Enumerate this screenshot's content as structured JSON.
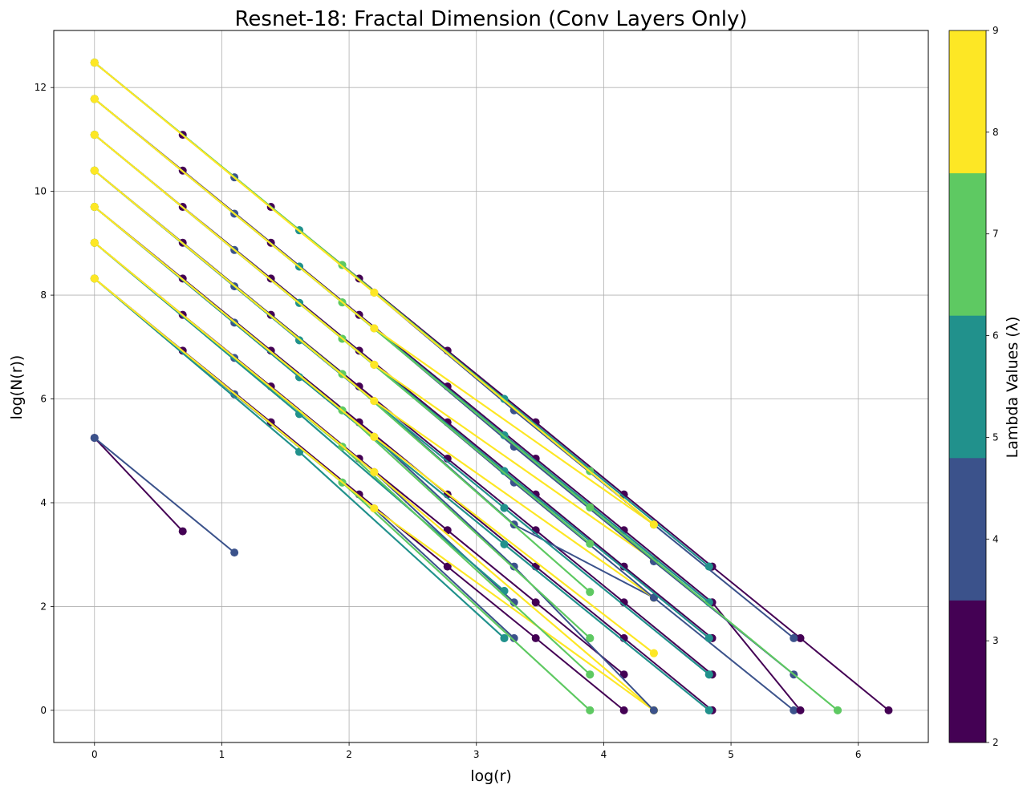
{
  "chart_data": {
    "type": "line",
    "title": "Resnet-18: Fractal Dimension (Conv Layers Only)",
    "xlabel": "log(r)",
    "ylabel": "log(N(r))",
    "xlim": [
      -0.32,
      6.55
    ],
    "ylim": [
      -0.62,
      13.1
    ],
    "xticks": [
      0,
      1,
      2,
      3,
      4,
      5,
      6
    ],
    "yticks": [
      0,
      2,
      4,
      6,
      8,
      10,
      12
    ],
    "grid": true,
    "colorbar": {
      "label": "Lambda Values (λ)",
      "ticks": [
        2,
        3,
        4,
        5,
        6,
        7,
        8,
        9
      ],
      "range": [
        2,
        9
      ],
      "bands": [
        {
          "color": "#440154"
        },
        {
          "color": "#3b528b"
        },
        {
          "color": "#21918c"
        },
        {
          "color": "#5ec962"
        },
        {
          "color": "#fde725"
        }
      ]
    },
    "series": [
      {
        "lambda": 2,
        "color": "#440154",
        "x": [
          0,
          0.693
        ],
        "y": [
          5.25,
          3.45
        ]
      },
      {
        "lambda": 3,
        "color": "#3b528b",
        "x": [
          0,
          1.099
        ],
        "y": [
          5.25,
          3.04
        ]
      },
      {
        "lambda": 2,
        "color": "#440154",
        "x": [
          0,
          0.693,
          1.386,
          2.079,
          2.773,
          3.466,
          4.159
        ],
        "y": [
          8.32,
          6.93,
          5.55,
          4.16,
          2.77,
          1.39,
          0
        ]
      },
      {
        "lambda": 3,
        "color": "#3b528b",
        "x": [
          0,
          1.099,
          2.197,
          3.296
        ],
        "y": [
          8.32,
          6.09,
          3.89,
          1.39
        ]
      },
      {
        "lambda": 4,
        "color": "#21918c",
        "x": [
          0,
          1.609,
          3.219
        ],
        "y": [
          8.32,
          4.98,
          1.39
        ]
      },
      {
        "lambda": 5,
        "color": "#21918c",
        "x": [
          0,
          1.609,
          3.219
        ],
        "y": [
          8.32,
          4.98,
          1.39
        ]
      },
      {
        "lambda": 6,
        "color": "#5ec962",
        "x": [
          0,
          1.946,
          3.892
        ],
        "y": [
          8.32,
          4.39,
          0
        ]
      },
      {
        "lambda": 7,
        "color": "#5ec962",
        "x": [
          0,
          1.946,
          3.892
        ],
        "y": [
          8.32,
          4.39,
          0
        ]
      },
      {
        "lambda": 8,
        "color": "#fde725",
        "x": [
          0,
          2.197,
          4.394
        ],
        "y": [
          8.32,
          3.89,
          0
        ]
      },
      {
        "lambda": 9,
        "color": "#fde725",
        "x": [
          0,
          2.197,
          4.394
        ],
        "y": [
          8.32,
          3.89,
          0
        ]
      },
      {
        "lambda": 2,
        "color": "#440154",
        "x": [
          0,
          0.693,
          1.386,
          2.079,
          2.773,
          3.466,
          4.159
        ],
        "y": [
          9.01,
          7.62,
          6.24,
          4.85,
          3.47,
          2.08,
          0.69
        ]
      },
      {
        "lambda": 3,
        "color": "#3b528b",
        "x": [
          0,
          1.099,
          2.197,
          3.296
        ],
        "y": [
          9.01,
          6.79,
          4.59,
          2.08
        ]
      },
      {
        "lambda": 4,
        "color": "#21918c",
        "x": [
          0,
          1.609,
          3.219
        ],
        "y": [
          9.01,
          5.71,
          2.3
        ]
      },
      {
        "lambda": 5,
        "color": "#21918c",
        "x": [
          0,
          1.609,
          3.219
        ],
        "y": [
          9.01,
          5.71,
          2.3
        ]
      },
      {
        "lambda": 6,
        "color": "#5ec962",
        "x": [
          0,
          1.946,
          3.892
        ],
        "y": [
          9.01,
          5.08,
          0.69
        ]
      },
      {
        "lambda": 7,
        "color": "#5ec962",
        "x": [
          0,
          1.946,
          3.892
        ],
        "y": [
          9.01,
          5.08,
          0.69
        ]
      },
      {
        "lambda": 8,
        "color": "#fde725",
        "x": [
          0,
          2.197,
          4.394
        ],
        "y": [
          9.01,
          4.59,
          0
        ]
      },
      {
        "lambda": 9,
        "color": "#fde725",
        "x": [
          0,
          2.197,
          4.394
        ],
        "y": [
          9.01,
          4.59,
          0
        ]
      },
      {
        "lambda": 2,
        "color": "#440154",
        "x": [
          0,
          0.693,
          1.386,
          2.079,
          2.773,
          3.466,
          4.159,
          4.852
        ],
        "y": [
          9.7,
          8.32,
          6.93,
          5.55,
          4.16,
          2.77,
          1.39,
          0
        ]
      },
      {
        "lambda": 3,
        "color": "#3b528b",
        "x": [
          0,
          1.099,
          2.197,
          3.296,
          4.394
        ],
        "y": [
          9.7,
          7.47,
          5.27,
          2.77,
          0
        ]
      },
      {
        "lambda": 4,
        "color": "#21918c",
        "x": [
          0,
          1.609,
          3.219,
          4.828
        ],
        "y": [
          9.7,
          6.42,
          3.2,
          0
        ]
      },
      {
        "lambda": 5,
        "color": "#21918c",
        "x": [
          0,
          1.609,
          3.219,
          4.828
        ],
        "y": [
          9.7,
          6.42,
          3.2,
          0
        ]
      },
      {
        "lambda": 6,
        "color": "#5ec962",
        "x": [
          0,
          1.946,
          3.892
        ],
        "y": [
          9.7,
          5.78,
          1.39
        ]
      },
      {
        "lambda": 7,
        "color": "#5ec962",
        "x": [
          0,
          1.946,
          3.892
        ],
        "y": [
          9.7,
          5.78,
          1.39
        ]
      },
      {
        "lambda": 8,
        "color": "#fde725",
        "x": [
          0,
          2.197,
          4.394
        ],
        "y": [
          9.7,
          5.27,
          1.1
        ]
      },
      {
        "lambda": 9,
        "color": "#fde725",
        "x": [
          0,
          2.197,
          4.394
        ],
        "y": [
          9.7,
          5.27,
          1.1
        ]
      },
      {
        "lambda": 2,
        "color": "#440154",
        "x": [
          0,
          0.693,
          1.386,
          2.079,
          2.773,
          3.466,
          4.159,
          4.852
        ],
        "y": [
          10.4,
          9.01,
          7.62,
          6.24,
          4.85,
          3.47,
          2.08,
          0.69
        ]
      },
      {
        "lambda": 3,
        "color": "#3b528b",
        "x": [
          0,
          1.099,
          2.197,
          3.296,
          4.394
        ],
        "y": [
          10.4,
          8.17,
          5.96,
          3.58,
          2.17
        ]
      },
      {
        "lambda": 4,
        "color": "#21918c",
        "x": [
          0,
          1.609,
          3.219,
          4.828
        ],
        "y": [
          10.4,
          7.13,
          3.9,
          0.69
        ]
      },
      {
        "lambda": 5,
        "color": "#21918c",
        "x": [
          0,
          1.609,
          3.219,
          4.828
        ],
        "y": [
          10.4,
          7.13,
          3.9,
          0.69
        ]
      },
      {
        "lambda": 6,
        "color": "#5ec962",
        "x": [
          0,
          1.946,
          3.892
        ],
        "y": [
          10.4,
          6.48,
          2.28
        ]
      },
      {
        "lambda": 7,
        "color": "#5ec962",
        "x": [
          0,
          1.946,
          3.892
        ],
        "y": [
          10.4,
          6.48,
          2.28
        ]
      },
      {
        "lambda": 8,
        "color": "#fde725",
        "x": [
          0,
          2.197,
          4.394
        ],
        "y": [
          10.4,
          5.96,
          2.17
        ]
      },
      {
        "lambda": 9,
        "color": "#fde725",
        "x": [
          0,
          2.197,
          4.394
        ],
        "y": [
          10.4,
          5.96,
          2.17
        ]
      },
      {
        "lambda": 2,
        "color": "#440154",
        "x": [
          0,
          0.693,
          1.386,
          2.079,
          2.773,
          3.466,
          4.159,
          4.852
        ],
        "y": [
          11.09,
          9.7,
          8.32,
          6.93,
          5.55,
          4.16,
          2.77,
          1.39
        ]
      },
      {
        "lambda": 3,
        "color": "#3b528b",
        "x": [
          0,
          1.099,
          2.197,
          3.296,
          4.394,
          5.493
        ],
        "y": [
          11.09,
          8.87,
          6.66,
          4.39,
          2.17,
          0
        ]
      },
      {
        "lambda": 4,
        "color": "#21918c",
        "x": [
          0,
          1.609,
          3.219,
          4.828
        ],
        "y": [
          11.09,
          7.85,
          4.61,
          1.39
        ]
      },
      {
        "lambda": 5,
        "color": "#21918c",
        "x": [
          0,
          1.609,
          3.219,
          4.828
        ],
        "y": [
          11.09,
          7.85,
          4.61,
          1.39
        ]
      },
      {
        "lambda": 6,
        "color": "#5ec962",
        "x": [
          0,
          1.946,
          3.892
        ],
        "y": [
          11.09,
          7.16,
          3.21
        ]
      },
      {
        "lambda": 7,
        "color": "#5ec962",
        "x": [
          0,
          1.946,
          3.892
        ],
        "y": [
          11.09,
          7.16,
          3.21
        ]
      },
      {
        "lambda": 8,
        "color": "#fde725",
        "x": [
          0,
          2.197,
          4.394
        ],
        "y": [
          11.09,
          6.66,
          2.89
        ]
      },
      {
        "lambda": 9,
        "color": "#fde725",
        "x": [
          0,
          2.197,
          4.394
        ],
        "y": [
          11.09,
          6.66,
          2.89
        ]
      },
      {
        "lambda": 2,
        "color": "#440154",
        "x": [
          0,
          0.693,
          1.386,
          2.079,
          2.773,
          3.466,
          4.159,
          4.852,
          5.545
        ],
        "y": [
          11.78,
          10.4,
          9.01,
          7.62,
          6.24,
          4.85,
          3.47,
          2.08,
          0
        ]
      },
      {
        "lambda": 3,
        "color": "#3b528b",
        "x": [
          0,
          1.099,
          2.197,
          3.296,
          4.394,
          5.493
        ],
        "y": [
          11.78,
          9.57,
          7.36,
          5.08,
          2.87,
          0.69
        ]
      },
      {
        "lambda": 4,
        "color": "#21918c",
        "x": [
          0,
          1.609,
          3.219,
          4.828
        ],
        "y": [
          11.78,
          8.55,
          5.3,
          2.08
        ]
      },
      {
        "lambda": 5,
        "color": "#21918c",
        "x": [
          0,
          1.609,
          3.219,
          4.828
        ],
        "y": [
          11.78,
          8.55,
          5.3,
          2.08
        ]
      },
      {
        "lambda": 6,
        "color": "#5ec962",
        "x": [
          0,
          1.946,
          3.892,
          5.838
        ],
        "y": [
          11.78,
          7.86,
          3.91,
          0
        ]
      },
      {
        "lambda": 7,
        "color": "#5ec962",
        "x": [
          0,
          1.946,
          3.892,
          5.838
        ],
        "y": [
          11.78,
          7.86,
          3.91,
          0
        ]
      },
      {
        "lambda": 8,
        "color": "#fde725",
        "x": [
          0,
          2.197,
          4.394
        ],
        "y": [
          11.78,
          7.36,
          3.58
        ]
      },
      {
        "lambda": 9,
        "color": "#fde725",
        "x": [
          0,
          2.197,
          4.394
        ],
        "y": [
          11.78,
          7.36,
          3.58
        ]
      },
      {
        "lambda": 2,
        "color": "#440154",
        "x": [
          0,
          0.693,
          1.386,
          2.079,
          2.773,
          3.466,
          4.159,
          4.852,
          5.545,
          6.238
        ],
        "y": [
          12.48,
          11.09,
          9.7,
          8.32,
          6.93,
          5.55,
          4.16,
          2.77,
          1.39,
          0
        ]
      },
      {
        "lambda": 3,
        "color": "#3b528b",
        "x": [
          0,
          1.099,
          2.197,
          3.296,
          4.394,
          5.493
        ],
        "y": [
          12.48,
          10.27,
          8.05,
          5.78,
          3.58,
          1.39
        ]
      },
      {
        "lambda": 4,
        "color": "#21918c",
        "x": [
          0,
          1.609,
          3.219,
          4.828
        ],
        "y": [
          12.48,
          9.25,
          6.0,
          2.77
        ]
      },
      {
        "lambda": 5,
        "color": "#21918c",
        "x": [
          0,
          1.609,
          3.219,
          4.828
        ],
        "y": [
          12.48,
          9.25,
          6.0,
          2.77
        ]
      },
      {
        "lambda": 6,
        "color": "#5ec962",
        "x": [
          0,
          1.946,
          3.892
        ],
        "y": [
          12.48,
          8.58,
          4.61
        ]
      },
      {
        "lambda": 7,
        "color": "#5ec962",
        "x": [
          0,
          1.946,
          3.892
        ],
        "y": [
          12.48,
          8.58,
          4.61
        ]
      },
      {
        "lambda": 8,
        "color": "#fde725",
        "x": [
          0,
          2.197,
          4.394
        ],
        "y": [
          12.48,
          8.05,
          3.58
        ]
      },
      {
        "lambda": 9,
        "color": "#fde725",
        "x": [
          0,
          2.197,
          4.394
        ],
        "y": [
          12.48,
          8.05,
          3.58
        ]
      }
    ]
  }
}
